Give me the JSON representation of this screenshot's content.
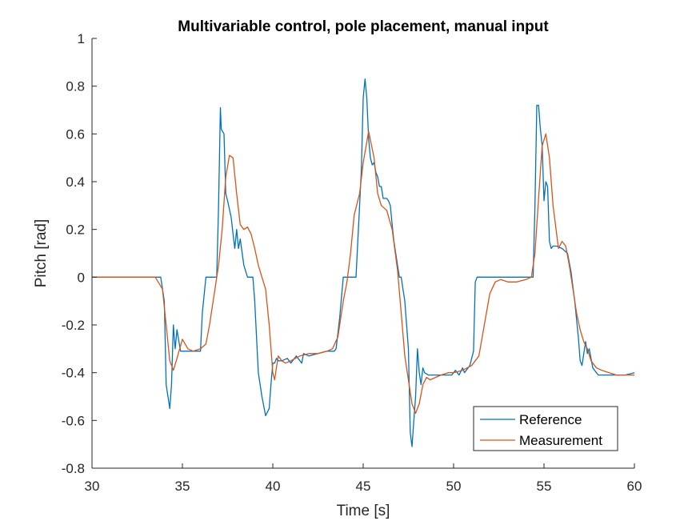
{
  "chart_data": {
    "type": "line",
    "title": "Multivariable control, pole placement, manual input",
    "xlabel": "Time [s]",
    "ylabel": "Pitch [rad]",
    "xlim": [
      30,
      60
    ],
    "ylim": [
      -0.8,
      1
    ],
    "xticks": [
      30,
      35,
      40,
      45,
      50,
      55,
      60
    ],
    "yticks": [
      -0.8,
      -0.6,
      -0.4,
      -0.2,
      0,
      0.2,
      0.4,
      0.6,
      0.8,
      1
    ],
    "xtick_labels": [
      "30",
      "35",
      "40",
      "45",
      "50",
      "55",
      "60"
    ],
    "ytick_labels": [
      "-0.8",
      "-0.6",
      "-0.4",
      "-0.2",
      "0",
      "0.2",
      "0.4",
      "0.6",
      "0.8",
      "1"
    ],
    "grid": false,
    "legend_position": "bottom-right",
    "series": [
      {
        "name": "Reference",
        "color": "#0072BD",
        "x": [
          30,
          31,
          32,
          33,
          33.8,
          34.0,
          34.1,
          34.3,
          34.4,
          34.5,
          34.6,
          34.7,
          34.9,
          35.5,
          36.0,
          36.1,
          36.3,
          36.5,
          36.9,
          37.0,
          37.1,
          37.15,
          37.3,
          37.4,
          37.5,
          37.7,
          37.8,
          37.9,
          38.0,
          38.1,
          38.2,
          38.4,
          38.6,
          38.8,
          38.9,
          39.0,
          39.2,
          39.4,
          39.6,
          39.8,
          39.9,
          40.0,
          40.1,
          40.2,
          40.3,
          40.5,
          40.8,
          41.0,
          41.3,
          41.5,
          41.6,
          41.7,
          42.0,
          42.5,
          43.0,
          43.4,
          43.5,
          43.7,
          43.9,
          44.1,
          44.2,
          44.4,
          44.6,
          44.8,
          44.9,
          45.0,
          45.1,
          45.2,
          45.3,
          45.4,
          45.5,
          45.6,
          45.7,
          45.8,
          45.9,
          46.0,
          46.1,
          46.3,
          46.4,
          46.5,
          46.6,
          46.7,
          46.9,
          47.0,
          47.1,
          47.2,
          47.3,
          47.5,
          47.6,
          47.7,
          47.8,
          47.9,
          48.0,
          48.1,
          48.2,
          48.3,
          48.4,
          48.6,
          48.8,
          49.0,
          49.5,
          49.9,
          50.1,
          50.3,
          50.5,
          50.6,
          50.8,
          50.9,
          51.0,
          51.1,
          51.2,
          51.3,
          51.5,
          52.0,
          53.0,
          54.0,
          54.4,
          54.5,
          54.6,
          54.7,
          54.8,
          54.9,
          55.0,
          55.1,
          55.2,
          55.3,
          55.4,
          55.5,
          55.7,
          56.0,
          56.3,
          56.5,
          56.7,
          56.9,
          57.0,
          57.1,
          57.3,
          57.4,
          57.5,
          57.7,
          57.9,
          58.0,
          58.2,
          58.5,
          59.0,
          59.5,
          60
        ],
        "y": [
          0,
          0,
          0,
          0,
          0,
          -0.1,
          -0.45,
          -0.55,
          -0.45,
          -0.2,
          -0.3,
          -0.22,
          -0.31,
          -0.31,
          -0.31,
          -0.15,
          0,
          0,
          0,
          0.3,
          0.71,
          0.62,
          0.6,
          0.35,
          0.32,
          0.25,
          0.18,
          0.12,
          0.2,
          0.12,
          0.16,
          0.05,
          0,
          0,
          0,
          -0.1,
          -0.4,
          -0.5,
          -0.58,
          -0.55,
          -0.45,
          -0.36,
          -0.36,
          -0.34,
          -0.35,
          -0.35,
          -0.34,
          -0.36,
          -0.33,
          -0.35,
          -0.36,
          -0.32,
          -0.33,
          -0.32,
          -0.31,
          -0.31,
          -0.3,
          -0.17,
          0,
          0,
          0,
          0,
          0,
          0.3,
          0.45,
          0.75,
          0.83,
          0.75,
          0.58,
          0.5,
          0.47,
          0.48,
          0.44,
          0.42,
          0.38,
          0.38,
          0.33,
          0.33,
          0.32,
          0.3,
          0.22,
          0.15,
          0.05,
          0,
          0,
          -0.05,
          -0.1,
          -0.3,
          -0.65,
          -0.71,
          -0.6,
          -0.5,
          -0.3,
          -0.4,
          -0.45,
          -0.38,
          -0.4,
          -0.41,
          -0.41,
          -0.41,
          -0.41,
          -0.41,
          -0.39,
          -0.41,
          -0.38,
          -0.4,
          -0.38,
          -0.37,
          -0.34,
          -0.31,
          -0.02,
          0,
          0,
          0,
          0,
          0,
          0,
          0.3,
          0.72,
          0.72,
          0.62,
          0.55,
          0.32,
          0.4,
          0.38,
          0.15,
          0.12,
          0.13,
          0.13,
          0.12,
          0.1,
          0.02,
          -0.1,
          -0.25,
          -0.35,
          -0.37,
          -0.27,
          -0.32,
          -0.3,
          -0.38,
          -0.4,
          -0.41,
          -0.41,
          -0.41,
          -0.41,
          -0.41,
          -0.4
        ]
      },
      {
        "name": "Measurement",
        "color": "#D95319",
        "x": [
          30,
          32,
          33.5,
          33.9,
          34.1,
          34.3,
          34.5,
          34.7,
          35.0,
          35.3,
          35.6,
          36.0,
          36.3,
          36.5,
          36.8,
          37.0,
          37.2,
          37.4,
          37.6,
          37.8,
          38.0,
          38.2,
          38.4,
          38.6,
          38.8,
          39.0,
          39.2,
          39.4,
          39.6,
          39.8,
          40.0,
          40.1,
          40.2,
          40.3,
          40.5,
          40.7,
          41.0,
          41.5,
          42.0,
          42.5,
          43.0,
          43.3,
          43.6,
          43.9,
          44.1,
          44.3,
          44.5,
          44.8,
          45.0,
          45.3,
          45.6,
          45.8,
          46.0,
          46.3,
          46.6,
          46.9,
          47.1,
          47.3,
          47.5,
          47.7,
          47.9,
          48.1,
          48.3,
          48.5,
          48.7,
          49.0,
          49.3,
          49.7,
          50.0,
          50.5,
          51.0,
          51.4,
          51.7,
          52.0,
          52.3,
          52.6,
          53.0,
          53.5,
          54.0,
          54.3,
          54.5,
          54.7,
          54.9,
          55.1,
          55.3,
          55.5,
          55.8,
          56.0,
          56.2,
          56.4,
          56.6,
          56.8,
          57.0,
          57.2,
          57.4,
          57.6,
          57.9,
          58.2,
          58.6,
          59.0,
          59.5,
          60
        ],
        "y": [
          0,
          0,
          0,
          -0.05,
          -0.2,
          -0.35,
          -0.39,
          -0.34,
          -0.26,
          -0.3,
          -0.31,
          -0.3,
          -0.28,
          -0.2,
          -0.05,
          0.05,
          0.2,
          0.42,
          0.51,
          0.5,
          0.35,
          0.22,
          0.2,
          0.21,
          0.18,
          0.12,
          0.05,
          0,
          -0.05,
          -0.2,
          -0.4,
          -0.43,
          -0.38,
          -0.33,
          -0.35,
          -0.36,
          -0.35,
          -0.33,
          -0.32,
          -0.32,
          -0.31,
          -0.3,
          -0.25,
          -0.1,
          -0.02,
          0.1,
          0.26,
          0.35,
          0.48,
          0.61,
          0.5,
          0.35,
          0.3,
          0.28,
          0.2,
          0.03,
          -0.15,
          -0.33,
          -0.43,
          -0.53,
          -0.57,
          -0.53,
          -0.45,
          -0.42,
          -0.43,
          -0.42,
          -0.41,
          -0.4,
          -0.4,
          -0.39,
          -0.37,
          -0.33,
          -0.2,
          -0.07,
          -0.02,
          -0.01,
          -0.02,
          -0.02,
          -0.01,
          0,
          0.1,
          0.33,
          0.55,
          0.6,
          0.5,
          0.3,
          0.12,
          0.15,
          0.13,
          0.05,
          -0.05,
          -0.15,
          -0.22,
          -0.27,
          -0.3,
          -0.35,
          -0.38,
          -0.39,
          -0.4,
          -0.41,
          -0.41,
          -0.41
        ]
      }
    ]
  }
}
